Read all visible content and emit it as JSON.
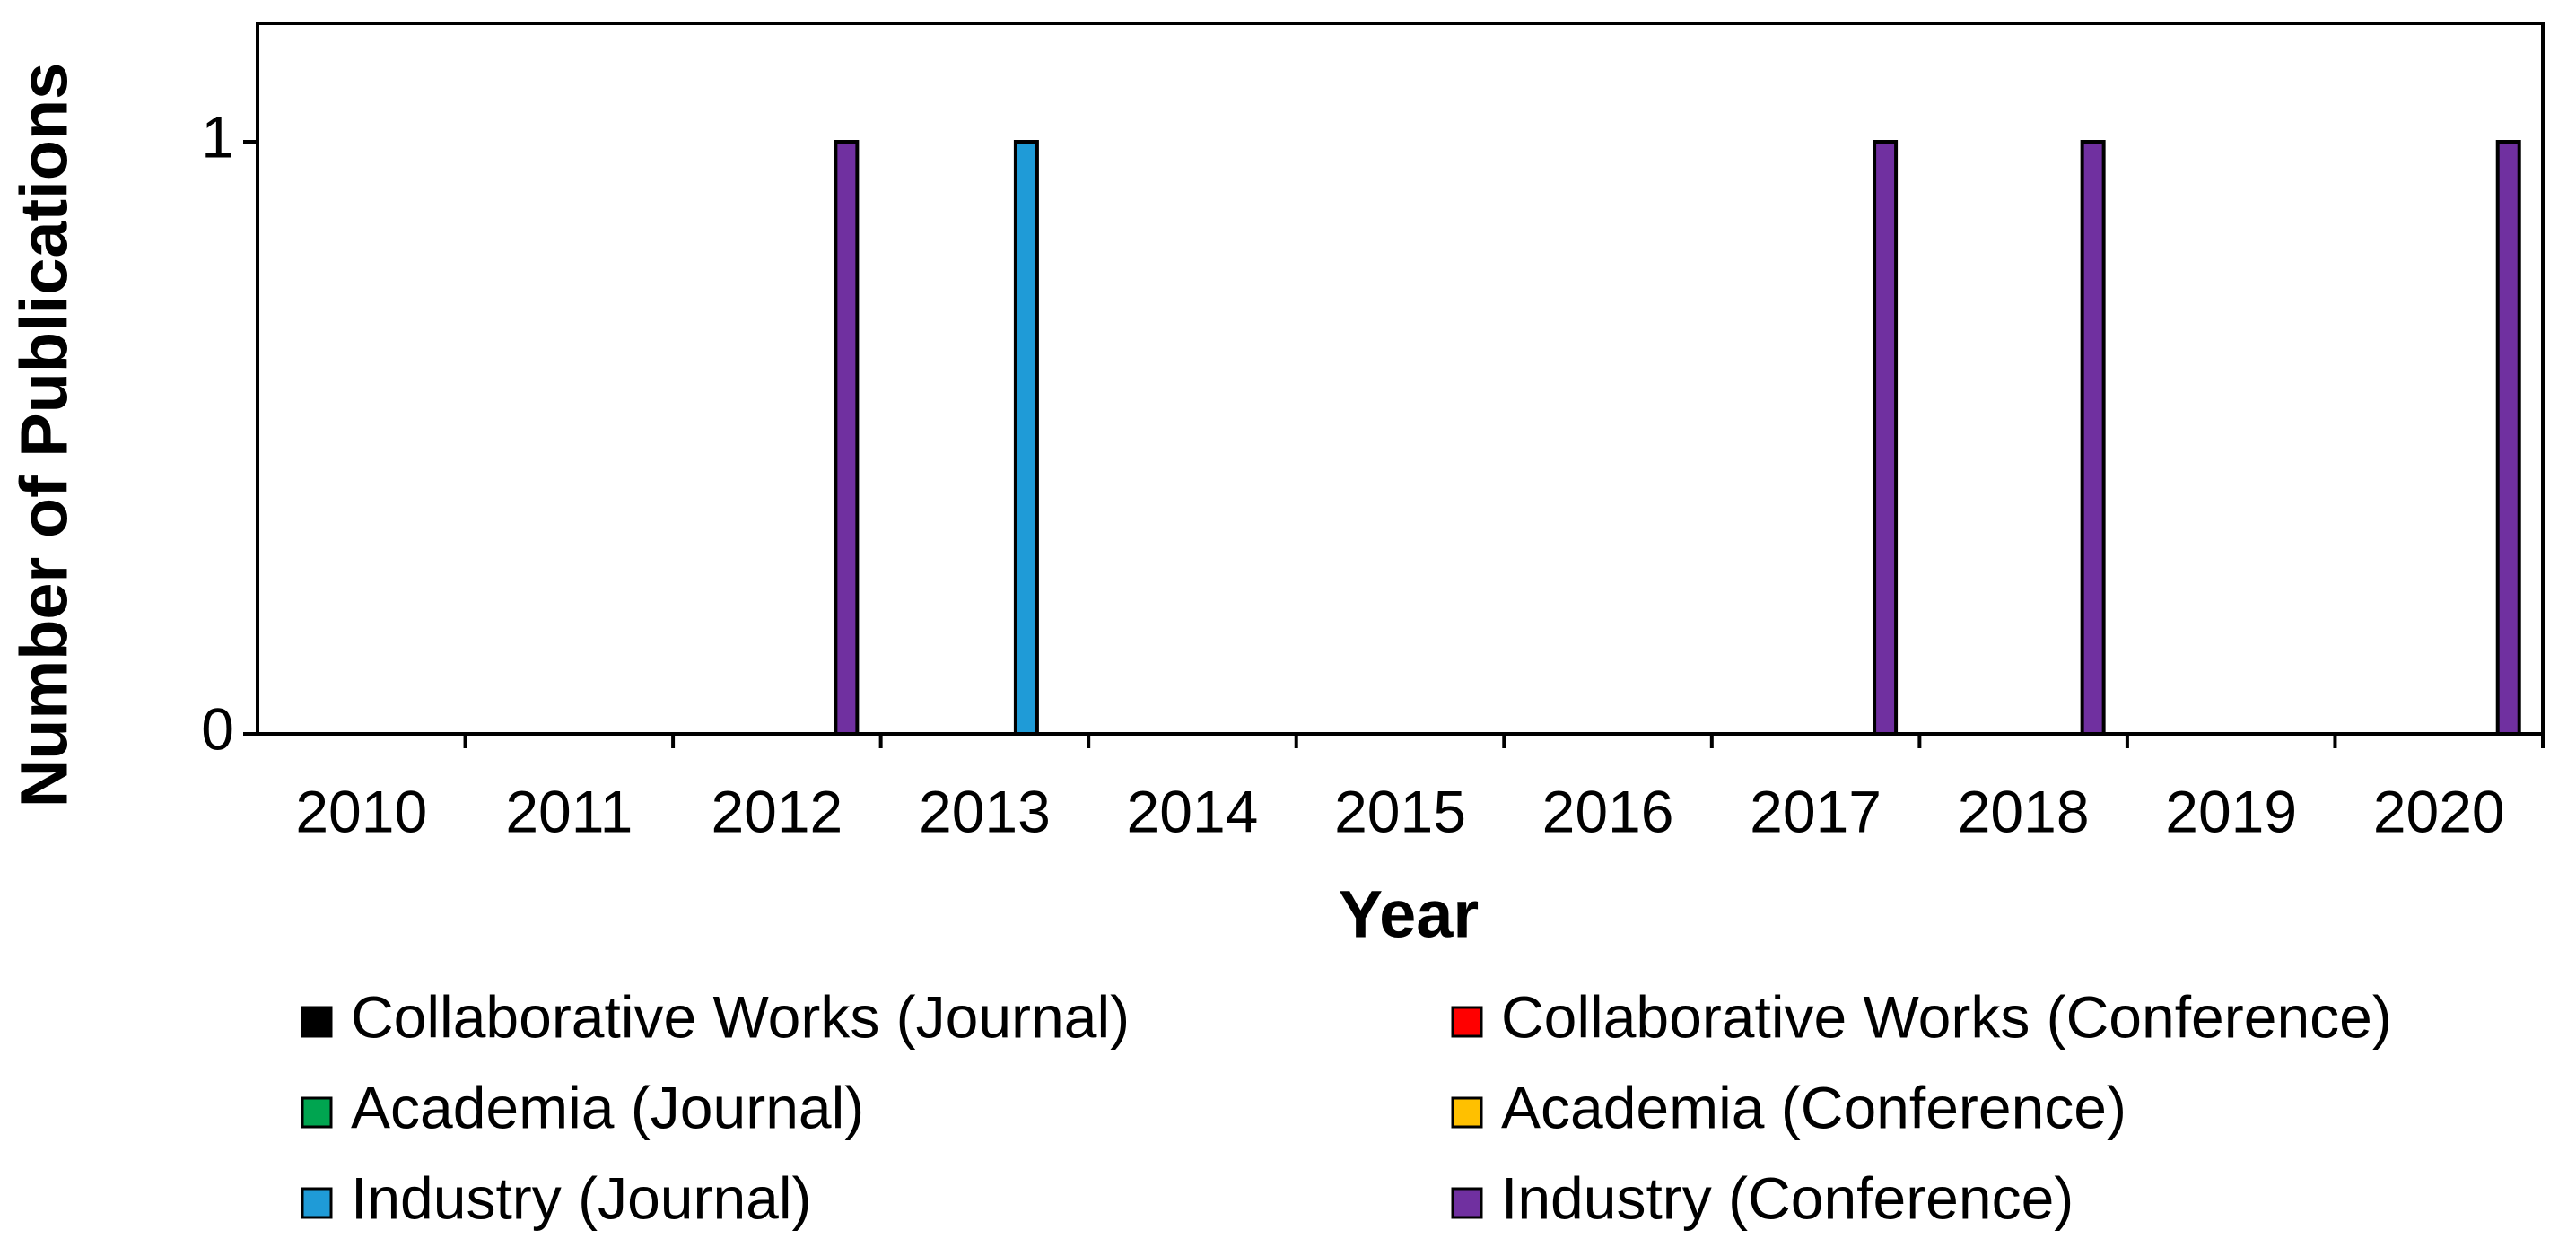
{
  "chart_data": {
    "type": "bar",
    "x_label": "Year",
    "y_label": "Number of Publications",
    "categories": [
      "2010",
      "2011",
      "2012",
      "2013",
      "2014",
      "2015",
      "2016",
      "2017",
      "2018",
      "2019",
      "2020"
    ],
    "series": [
      {
        "name": "Collaborative Works (Journal)",
        "color": "#000000",
        "values": [
          0,
          0,
          0,
          0,
          0,
          0,
          0,
          0,
          0,
          0,
          0
        ]
      },
      {
        "name": "Collaborative Works (Conference)",
        "color": "#ff0000",
        "values": [
          0,
          0,
          0,
          0,
          0,
          0,
          0,
          0,
          0,
          0,
          0
        ]
      },
      {
        "name": "Academia (Journal)",
        "color": "#00a550",
        "values": [
          0,
          0,
          0,
          0,
          0,
          0,
          0,
          0,
          0,
          0,
          0
        ]
      },
      {
        "name": "Academia (Conference)",
        "color": "#ffc000",
        "values": [
          0,
          0,
          0,
          0,
          0,
          0,
          0,
          0,
          0,
          0,
          0
        ]
      },
      {
        "name": "Industry (Journal)",
        "color": "#1f9bd7",
        "values": [
          0,
          0,
          0,
          1,
          0,
          0,
          0,
          0,
          0,
          0,
          0
        ]
      },
      {
        "name": "Industry (Conference)",
        "color": "#7030a0",
        "values": [
          0,
          0,
          1,
          0,
          0,
          0,
          0,
          1,
          1,
          0,
          1
        ]
      }
    ],
    "ylim": [
      0,
      1.2
    ],
    "yticks": [
      0,
      1
    ],
    "grid": false
  }
}
